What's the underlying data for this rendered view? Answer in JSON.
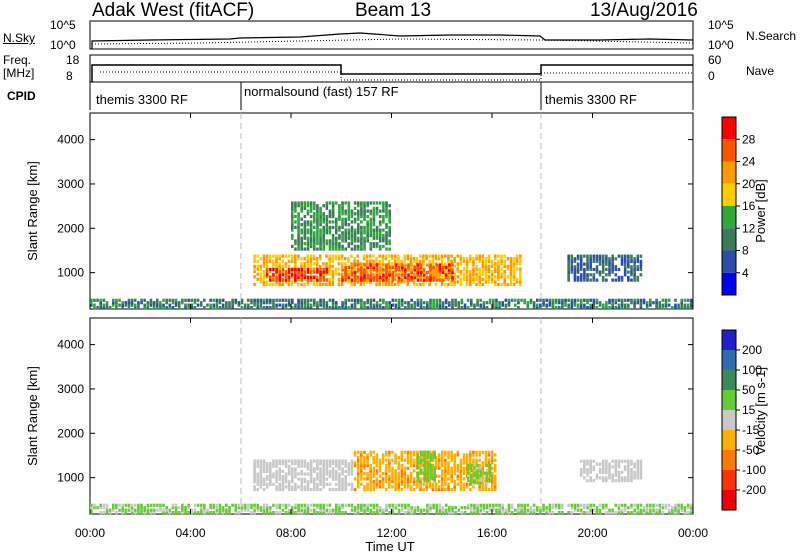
{
  "header": {
    "station": "Adak West (fitACF)",
    "beam": "Beam 13",
    "date": "13/Aug/2016"
  },
  "top_panels": {
    "nsky_label": "N.Sky",
    "nsearch_label": "N.Search",
    "freq_label_1": "Freq.",
    "freq_label_2": "[MHz]",
    "nave_label": "Nave",
    "cpid_label": "CPID",
    "nsky_ticks": [
      "10^5",
      "10^0"
    ],
    "nsearch_ticks": [
      "10^5",
      "10^0"
    ],
    "freq_ticks": [
      "18",
      "8"
    ],
    "nave_ticks": [
      "60",
      "0"
    ]
  },
  "cpid_segments": [
    {
      "label": "themis 3300 RF",
      "start_hour": 0
    },
    {
      "label": "normalsound (fast) 157 RF",
      "start_hour": 6
    },
    {
      "label": "themis 3300 RF",
      "start_hour": 18
    }
  ],
  "axes": {
    "ylabel": "Slant Range [km]",
    "y_ticks": [
      "4000",
      "3000",
      "2000",
      "1000"
    ],
    "x_ticks": [
      "00:00",
      "04:00",
      "08:00",
      "12:00",
      "16:00",
      "20:00",
      "00:00"
    ],
    "xlabel": "Time UT"
  },
  "power_colorbar": {
    "label": "Power [dB]",
    "ticks": [
      "28",
      "24",
      "20",
      "16",
      "12",
      "8",
      "4"
    ],
    "colors": [
      "#ff0000",
      "#ff5500",
      "#ff9900",
      "#ffcc00",
      "#2ea83a",
      "#3b7a5a",
      "#2d4ea8",
      "#0000ee"
    ]
  },
  "velocity_colorbar": {
    "label": "Velocity [m s-1]",
    "ticks": [
      "200",
      "100",
      "50",
      "15",
      "-15",
      "-50",
      "-100",
      "-200"
    ],
    "colors": [
      "#2020c8",
      "#2e6bb0",
      "#3a8a5a",
      "#66cc33",
      "#c8c8c8",
      "#ffb000",
      "#ff7a00",
      "#ff3300",
      "#ee0000"
    ]
  },
  "chart_data": [
    {
      "type": "heatmap",
      "title": "",
      "xlabel": "Time UT",
      "ylabel": "Slant Range [km]",
      "xlim": [
        0,
        24
      ],
      "ylim": [
        180,
        4600
      ],
      "colorbar": "Power [dB]",
      "regions": [
        {
          "t0": 6.5,
          "t1": 17.2,
          "r0": 700,
          "r1": 1400,
          "value_db": 18
        },
        {
          "t0": 7.0,
          "t1": 9.5,
          "r0": 800,
          "r1": 1100,
          "value_db": 26
        },
        {
          "t0": 10.0,
          "t1": 14.5,
          "r0": 800,
          "r1": 1200,
          "value_db": 24
        },
        {
          "t0": 8.0,
          "t1": 12.0,
          "r0": 1500,
          "r1": 2600,
          "value_db": 10
        },
        {
          "t0": 19.0,
          "t1": 22.0,
          "r0": 800,
          "r1": 1400,
          "value_db": 6
        },
        {
          "t0": 0.0,
          "t1": 24.0,
          "r0": 180,
          "r1": 400,
          "value_db": 8
        }
      ]
    },
    {
      "type": "heatmap",
      "title": "",
      "xlabel": "Time UT",
      "ylabel": "Slant Range [km]",
      "xlim": [
        0,
        24
      ],
      "ylim": [
        180,
        4600
      ],
      "colorbar": "Velocity [m s-1]",
      "regions": [
        {
          "t0": 6.5,
          "t1": 10.5,
          "r0": 700,
          "r1": 1400,
          "value_ms": 0
        },
        {
          "t0": 10.5,
          "t1": 16.2,
          "r0": 700,
          "r1": 1600,
          "value_ms": -40
        },
        {
          "t0": 13.0,
          "t1": 13.8,
          "r0": 900,
          "r1": 1600,
          "value_ms": 30
        },
        {
          "t0": 15.0,
          "t1": 16.0,
          "r0": 850,
          "r1": 1300,
          "value_ms": 25
        },
        {
          "t0": 19.5,
          "t1": 22.0,
          "r0": 900,
          "r1": 1400,
          "value_ms": 0
        },
        {
          "t0": 0.0,
          "t1": 24.0,
          "r0": 180,
          "r1": 400,
          "value_ms": 20
        }
      ]
    }
  ]
}
